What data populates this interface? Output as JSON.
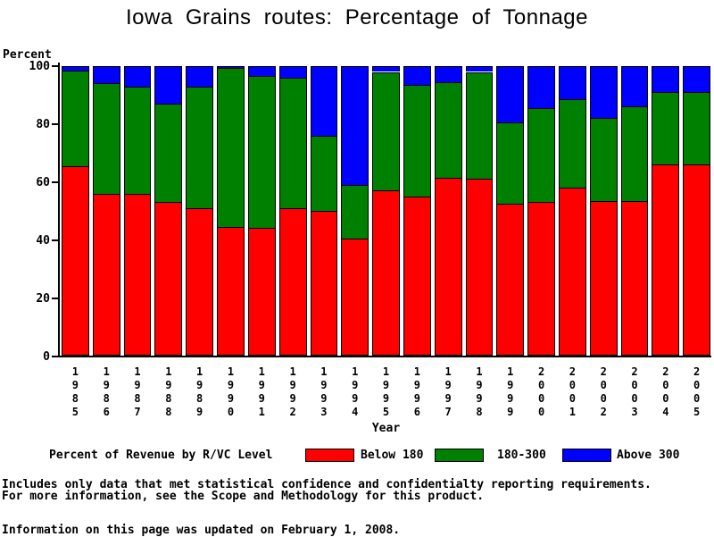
{
  "title": "Iowa Grains routes: Percentage of Tonnage",
  "y_axis": {
    "label": "Percent",
    "ticks": [
      "100",
      "80",
      "60",
      "40",
      "20",
      "0"
    ]
  },
  "x_axis": {
    "label": "Year"
  },
  "legend": {
    "title": "Percent of Revenue by R/VC Level",
    "items": [
      {
        "label": "Below 180",
        "color": "#ff0000"
      },
      {
        "label": "180-300",
        "color": "#008000"
      },
      {
        "label": "Above 300",
        "color": "#0000ff"
      }
    ]
  },
  "footnotes": [
    "Includes only data that met statistical confidence and confidentialty reporting requirements.",
    "For more information, see the Scope and Methodology for this product."
  ],
  "updated_note": "Information on this page was updated on February 1, 2008.",
  "chart_data": {
    "type": "bar",
    "stacked": true,
    "title": "Iowa Grains routes: Percentage of Tonnage",
    "xlabel": "Year",
    "ylabel": "Percent",
    "ylim": [
      0,
      100
    ],
    "grid": false,
    "legend_position": "bottom",
    "categories": [
      "1985",
      "1986",
      "1987",
      "1988",
      "1989",
      "1990",
      "1991",
      "1992",
      "1993",
      "1994",
      "1995",
      "1996",
      "1997",
      "1998",
      "1999",
      "2000",
      "2001",
      "2002",
      "2003",
      "2004",
      "2005"
    ],
    "series": [
      {
        "name": "Below 180",
        "color": "#ff0000",
        "values": [
          65.5,
          56,
          56,
          53,
          51,
          44.5,
          44,
          51,
          50,
          40.5,
          57,
          55,
          61.5,
          61,
          52.5,
          53,
          58,
          53.5,
          53.5,
          66,
          66
        ]
      },
      {
        "name": "180-300",
        "color": "#008000",
        "values": [
          33,
          38,
          37,
          34,
          42,
          55,
          52.5,
          45,
          26,
          18.5,
          41,
          38.5,
          33,
          37,
          28,
          32.5,
          30.5,
          28.5,
          32.5,
          25,
          25
        ]
      },
      {
        "name": "Above 300",
        "color": "#0000ff",
        "values": [
          1.5,
          6,
          7,
          13,
          7,
          0.5,
          3.5,
          4,
          24,
          41,
          2,
          6.5,
          5.5,
          2,
          19.5,
          14.5,
          11.5,
          18,
          14,
          9,
          9
        ]
      }
    ]
  }
}
